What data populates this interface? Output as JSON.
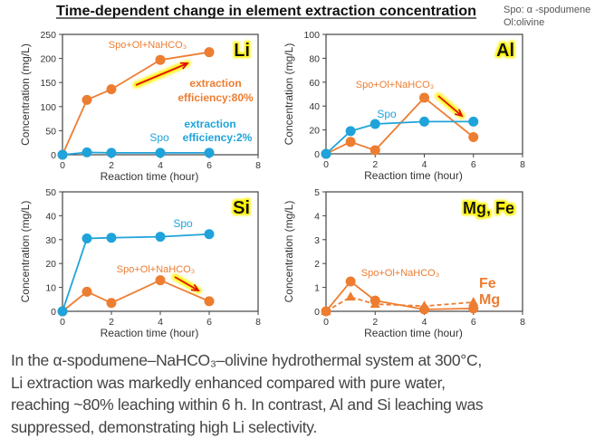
{
  "title": "Time-dependent change in element extraction concentration",
  "legend_notes": [
    "Spo: α -spodumene",
    "Ol:olivine"
  ],
  "caption": [
    "In the α-spodumene–NaHCO₃–olivine hydrothermal system at 300°C,",
    "Li extraction was markedly enhanced compared with pure water,",
    "reaching ~80% leaching within 6 h. In contrast, Al and Si leaching was",
    "suppressed, demonstrating high Li selectivity."
  ],
  "colors": {
    "orange": "#ED7D31",
    "blue": "#1FA3DA",
    "arrow": "#E01010",
    "glow": "#FFF200"
  },
  "chart_data": [
    {
      "type": "line",
      "element_label": "Li",
      "xlabel": "Reaction time (hour)",
      "ylabel": "Concentration (mg/L)",
      "xlim": [
        0,
        8
      ],
      "ylim": [
        0,
        250
      ],
      "xticks": [
        0,
        2,
        4,
        6,
        8
      ],
      "yticks": [
        0,
        50,
        100,
        150,
        200,
        250
      ],
      "grid": false,
      "series": [
        {
          "name": "Spo+Ol+NaHCO₃",
          "color": "orange",
          "marker": "circle",
          "dash": false,
          "x": [
            0,
            1,
            2,
            4,
            6
          ],
          "y": [
            0,
            114,
            136,
            197,
            213
          ]
        },
        {
          "name": "Spo",
          "color": "blue",
          "marker": "circle",
          "dash": false,
          "x": [
            0,
            1,
            2,
            4,
            6
          ],
          "y": [
            0,
            5,
            4,
            4,
            4
          ]
        }
      ],
      "annotations": [
        {
          "text": "extraction",
          "color": "orange"
        },
        {
          "text": "efficiency:80%",
          "color": "orange"
        },
        {
          "text": "extraction",
          "color": "blue"
        },
        {
          "text": "efficiency:2%",
          "color": "blue"
        }
      ]
    },
    {
      "type": "line",
      "element_label": "Al",
      "xlabel": "Reaction time (hour)",
      "ylabel": "Concentration (mg/L)",
      "xlim": [
        0,
        8
      ],
      "ylim": [
        0,
        100
      ],
      "xticks": [
        0,
        2,
        4,
        6,
        8
      ],
      "yticks": [
        0,
        20,
        40,
        60,
        80,
        100
      ],
      "grid": false,
      "series": [
        {
          "name": "Spo+Ol+NaHCO₃",
          "color": "orange",
          "marker": "circle",
          "dash": false,
          "x": [
            0,
            1,
            2,
            4,
            6
          ],
          "y": [
            0,
            10,
            3,
            47,
            14
          ]
        },
        {
          "name": "Spo",
          "color": "blue",
          "marker": "circle",
          "dash": false,
          "x": [
            0,
            1,
            2,
            4,
            6
          ],
          "y": [
            0,
            19,
            25,
            27,
            27
          ]
        }
      ],
      "annotations": []
    },
    {
      "type": "line",
      "element_label": "Si",
      "xlabel": "Reaction time (hour)",
      "ylabel": "Concentration (mg/L)",
      "xlim": [
        0,
        8
      ],
      "ylim": [
        0,
        50
      ],
      "xticks": [
        0,
        2,
        4,
        6,
        8
      ],
      "yticks": [
        0,
        10,
        20,
        30,
        40,
        50
      ],
      "grid": false,
      "series": [
        {
          "name": "Spo+Ol+NaHCO₃",
          "color": "orange",
          "marker": "circle",
          "dash": false,
          "x": [
            0,
            1,
            2,
            4,
            6
          ],
          "y": [
            0,
            8.2,
            3.5,
            13,
            4.2
          ]
        },
        {
          "name": "Spo",
          "color": "blue",
          "marker": "circle",
          "dash": false,
          "x": [
            0,
            1,
            2,
            4,
            6
          ],
          "y": [
            0,
            30.5,
            30.8,
            31.2,
            32.3
          ]
        }
      ],
      "annotations": []
    },
    {
      "type": "line",
      "element_label": "Mg, Fe",
      "xlabel": "Reaction time (hour)",
      "ylabel": "Concentration (mg/L)",
      "xlim": [
        0,
        8
      ],
      "ylim": [
        0,
        5
      ],
      "xticks": [
        0,
        2,
        4,
        6,
        8
      ],
      "yticks": [
        0,
        1,
        2,
        3,
        4,
        5
      ],
      "grid": false,
      "series": [
        {
          "name": "Fe",
          "color": "orange",
          "marker": "circle",
          "dash": false,
          "x": [
            0,
            1,
            2,
            4,
            6
          ],
          "y": [
            0,
            1.25,
            0.45,
            0.08,
            0.12
          ]
        },
        {
          "name": "Mg",
          "color": "orange",
          "marker": "triangle",
          "dash": true,
          "x": [
            0,
            1,
            2,
            4,
            6
          ],
          "y": [
            0,
            0.6,
            0.3,
            0.22,
            0.38
          ]
        }
      ],
      "group_label": "Spo+Ol+NaHCO₃",
      "annotations": []
    }
  ]
}
